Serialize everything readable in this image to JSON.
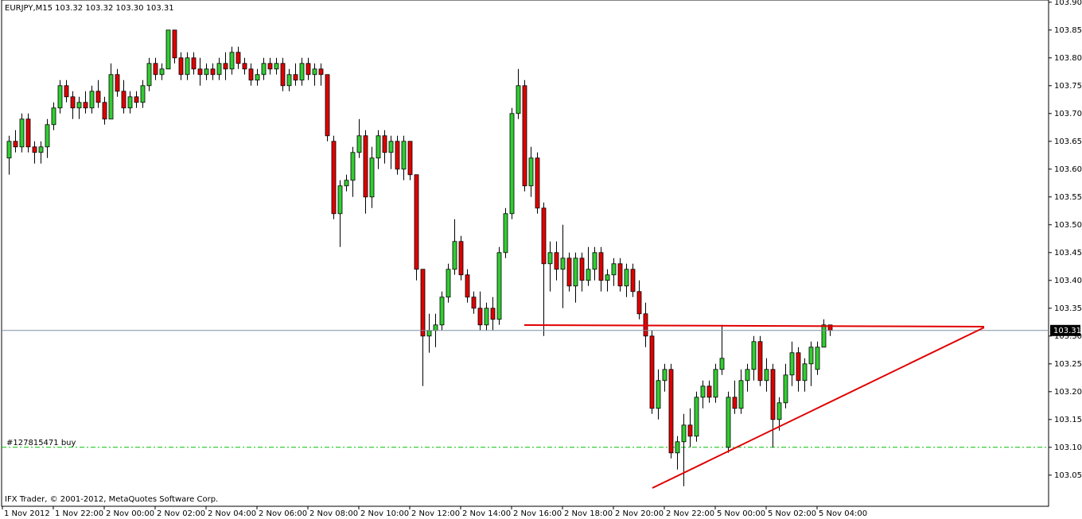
{
  "chart_data": {
    "type": "candlestick",
    "title": "EURJPY,M15  103.32 103.32 103.30 103.31",
    "footer": "IFX Trader, © 2001-2012, MetaQuotes Software Corp.",
    "up_color": "#32cd32",
    "down_color": "#e00000",
    "wick_color": "#000000",
    "categories": [
      "1 Nov 2012",
      null,
      null,
      null,
      null,
      null,
      null,
      null,
      "1 Nov 22:00",
      null,
      null,
      null,
      null,
      null,
      null,
      null,
      "2 Nov 00:00",
      null,
      null,
      null,
      null,
      null,
      null,
      null,
      "2 Nov 02:00",
      null,
      null,
      null,
      null,
      null,
      null,
      null,
      "2 Nov 04:00",
      null,
      null,
      null,
      null,
      null,
      null,
      null,
      "2 Nov 06:00",
      null,
      null,
      null,
      null,
      null,
      null,
      null,
      "2 Nov 08:00",
      null,
      null,
      null,
      null,
      null,
      null,
      null,
      "2 Nov 10:00",
      null,
      null,
      null,
      null,
      null,
      null,
      null,
      "2 Nov 12:00",
      null,
      null,
      null,
      null,
      null,
      null,
      null,
      "2 Nov 14:00",
      null,
      null,
      null,
      null,
      null,
      null,
      null,
      "2 Nov 16:00",
      null,
      null,
      null,
      null,
      null,
      null,
      null,
      "2 Nov 18:00",
      null,
      null,
      null,
      null,
      null,
      null,
      null,
      "2 Nov 20:00",
      null,
      null,
      null,
      null,
      null,
      null,
      null,
      "2 Nov 22:00",
      null,
      null,
      null,
      null,
      null,
      null,
      null,
      "5 Nov 00:00",
      null,
      null,
      null,
      null,
      null,
      null,
      null,
      "5 Nov 02:00",
      null,
      null,
      null,
      null,
      null,
      null,
      null,
      "5 Nov 04:00",
      null
    ],
    "open": [
      103.62,
      103.65,
      103.64,
      103.69,
      103.64,
      103.63,
      103.64,
      103.68,
      103.71,
      103.75,
      103.73,
      103.71,
      103.72,
      103.71,
      103.74,
      103.72,
      103.69,
      103.77,
      103.74,
      103.71,
      103.73,
      103.72,
      103.75,
      103.79,
      103.77,
      103.78,
      103.85,
      103.8,
      103.77,
      103.8,
      103.78,
      103.77,
      103.78,
      103.77,
      103.79,
      103.78,
      103.81,
      103.79,
      103.78,
      103.76,
      103.77,
      103.79,
      103.78,
      103.79,
      103.75,
      103.77,
      103.76,
      103.79,
      103.77,
      103.78,
      103.77,
      103.65,
      103.52,
      103.57,
      103.58,
      103.63,
      103.66,
      103.55,
      103.62,
      103.66,
      103.63,
      103.65,
      103.6,
      103.65,
      103.59,
      103.42,
      103.3,
      103.31,
      103.32,
      103.37,
      103.42,
      103.47,
      103.41,
      103.37,
      103.35,
      103.32,
      103.35,
      103.33,
      103.45,
      103.52,
      103.7,
      103.75,
      103.57,
      103.62,
      103.53,
      103.43,
      103.45,
      103.42,
      103.44,
      103.39,
      103.44,
      103.4,
      103.42,
      103.45,
      103.4,
      103.41,
      103.43,
      103.39,
      103.42,
      103.38,
      103.34,
      103.3,
      103.17,
      103.22,
      103.24,
      103.09,
      103.11,
      103.14,
      103.12,
      103.19,
      103.21,
      103.19,
      103.24,
      103.1,
      103.19,
      103.17,
      103.22,
      103.24,
      103.29,
      103.22,
      103.24,
      103.15,
      103.18,
      103.23,
      103.27,
      103.22,
      103.25,
      103.24,
      103.28,
      103.32
    ],
    "high": [
      103.66,
      103.67,
      103.7,
      103.7,
      103.65,
      103.65,
      103.69,
      103.72,
      103.76,
      103.76,
      103.74,
      103.73,
      103.74,
      103.75,
      103.76,
      103.73,
      103.79,
      103.78,
      103.76,
      103.74,
      103.74,
      103.76,
      103.8,
      103.8,
      103.79,
      103.85,
      103.85,
      103.81,
      103.81,
      103.81,
      103.8,
      103.79,
      103.79,
      103.8,
      103.81,
      103.82,
      103.82,
      103.8,
      103.79,
      103.78,
      103.8,
      103.8,
      103.8,
      103.8,
      103.78,
      103.79,
      103.8,
      103.8,
      103.79,
      103.79,
      103.77,
      103.66,
      103.58,
      103.59,
      103.64,
      103.69,
      103.67,
      103.64,
      103.67,
      103.67,
      103.66,
      103.66,
      103.66,
      103.65,
      103.59,
      103.42,
      103.34,
      103.34,
      103.38,
      103.43,
      103.51,
      103.48,
      103.42,
      103.38,
      103.38,
      103.36,
      103.37,
      103.46,
      103.53,
      103.71,
      103.78,
      103.76,
      103.64,
      103.63,
      103.54,
      103.47,
      103.47,
      103.5,
      103.45,
      103.45,
      103.45,
      103.46,
      103.46,
      103.46,
      103.42,
      103.44,
      103.44,
      103.43,
      103.43,
      103.4,
      103.36,
      103.31,
      103.24,
      103.25,
      103.25,
      103.12,
      103.16,
      103.17,
      103.2,
      103.22,
      103.22,
      103.25,
      103.32,
      103.2,
      103.22,
      103.24,
      103.25,
      103.3,
      103.3,
      103.26,
      103.25,
      103.19,
      103.25,
      103.29,
      103.28,
      103.26,
      103.29,
      103.29,
      103.33,
      103.32
    ],
    "low": [
      103.59,
      103.63,
      103.63,
      103.63,
      103.61,
      103.61,
      103.62,
      103.67,
      103.7,
      103.72,
      103.69,
      103.69,
      103.7,
      103.7,
      103.71,
      103.68,
      103.69,
      103.73,
      103.7,
      103.7,
      103.71,
      103.71,
      103.74,
      103.76,
      103.76,
      103.78,
      103.79,
      103.76,
      103.76,
      103.77,
      103.75,
      103.76,
      103.76,
      103.76,
      103.76,
      103.77,
      103.78,
      103.77,
      103.75,
      103.75,
      103.76,
      103.77,
      103.77,
      103.74,
      103.74,
      103.75,
      103.75,
      103.76,
      103.75,
      103.75,
      103.65,
      103.51,
      103.46,
      103.56,
      103.55,
      103.62,
      103.52,
      103.53,
      103.6,
      103.61,
      103.6,
      103.59,
      103.58,
      103.58,
      103.4,
      103.21,
      103.27,
      103.28,
      103.31,
      103.36,
      103.41,
      103.4,
      103.36,
      103.34,
      103.31,
      103.31,
      103.31,
      103.32,
      103.44,
      103.51,
      103.69,
      103.56,
      103.55,
      103.52,
      103.3,
      103.38,
      103.4,
      103.35,
      103.38,
      103.36,
      103.38,
      103.39,
      103.4,
      103.38,
      103.38,
      103.39,
      103.38,
      103.37,
      103.37,
      103.33,
      103.28,
      103.16,
      103.15,
      103.2,
      103.08,
      103.06,
      103.03,
      103.1,
      103.11,
      103.17,
      103.18,
      103.18,
      103.23,
      103.09,
      103.16,
      103.16,
      103.2,
      103.22,
      103.21,
      103.2,
      103.1,
      103.13,
      103.17,
      103.21,
      103.2,
      103.2,
      103.21,
      103.23,
      103.28,
      103.3
    ],
    "close": [
      103.65,
      103.64,
      103.69,
      103.64,
      103.63,
      103.64,
      103.68,
      103.71,
      103.75,
      103.73,
      103.71,
      103.72,
      103.71,
      103.74,
      103.72,
      103.69,
      103.77,
      103.74,
      103.71,
      103.73,
      103.72,
      103.75,
      103.79,
      103.77,
      103.78,
      103.85,
      103.8,
      103.77,
      103.8,
      103.78,
      103.77,
      103.78,
      103.77,
      103.79,
      103.78,
      103.81,
      103.79,
      103.78,
      103.76,
      103.77,
      103.79,
      103.78,
      103.79,
      103.75,
      103.77,
      103.76,
      103.79,
      103.77,
      103.78,
      103.77,
      103.66,
      103.52,
      103.57,
      103.58,
      103.63,
      103.66,
      103.55,
      103.62,
      103.66,
      103.63,
      103.65,
      103.6,
      103.65,
      103.59,
      103.42,
      103.3,
      103.31,
      103.32,
      103.37,
      103.42,
      103.47,
      103.41,
      103.37,
      103.35,
      103.32,
      103.35,
      103.33,
      103.45,
      103.52,
      103.7,
      103.75,
      103.57,
      103.62,
      103.53,
      103.43,
      103.45,
      103.42,
      103.44,
      103.39,
      103.44,
      103.4,
      103.42,
      103.45,
      103.4,
      103.41,
      103.43,
      103.39,
      103.42,
      103.38,
      103.34,
      103.3,
      103.17,
      103.22,
      103.24,
      103.09,
      103.11,
      103.14,
      103.12,
      103.19,
      103.21,
      103.19,
      103.24,
      103.26,
      103.19,
      103.17,
      103.22,
      103.24,
      103.29,
      103.22,
      103.24,
      103.15,
      103.18,
      103.23,
      103.27,
      103.22,
      103.25,
      103.28,
      103.28,
      103.32,
      103.31
    ],
    "ylim": [
      102.994,
      103.904
    ],
    "yticks": [
      {
        "value": 103.9,
        "label": "103.90"
      },
      103.85,
      {
        "value": 103.8,
        "label": "103.80"
      },
      103.75,
      {
        "value": 103.7,
        "label": "103.70"
      },
      103.65,
      {
        "value": 103.6,
        "label": "103.60"
      },
      103.55,
      {
        "value": 103.5,
        "label": "103.50"
      },
      103.45,
      {
        "value": 103.4,
        "label": "103.40"
      },
      103.35,
      {
        "value": 103.3,
        "label": "103.30"
      },
      103.25,
      {
        "value": 103.2,
        "label": "103.20"
      },
      103.15,
      {
        "value": 103.1,
        "label": "103.10"
      },
      103.05
    ],
    "current_price": 103.31,
    "current_price_color": "#7f90a0",
    "order_line": {
      "value": 103.1,
      "label": "#127815471 buy",
      "color": "#00c000"
    }
  }
}
